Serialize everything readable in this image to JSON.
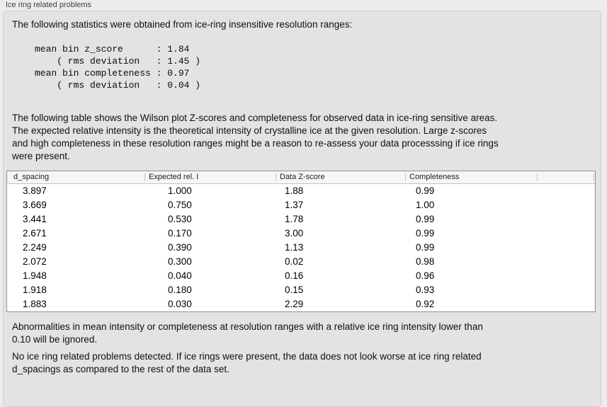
{
  "panel": {
    "label": "Ice ring related problems"
  },
  "sections": {
    "intro": "The following statistics were obtained from ice-ring insensitive resolution ranges:",
    "stats": "mean bin z_score      : 1.84\n    ( rms deviation   : 1.45 )\nmean bin completeness : 0.97\n    ( rms deviation   : 0.04 )",
    "table_caption": "The following table shows the Wilson plot Z-scores and completeness for observed data in ice-ring sensitive areas.\nThe expected relative intensity is the theoretical intensity of crystalline ice at the given resolution. Large z-scores\nand high completeness in these resolution ranges might be a reason to re-assess your data processsing if ice rings\nwere present.",
    "ignore_note": "Abnormalities in mean intensity or completeness at resolution ranges with a relative ice ring intensity lower than\n0.10 will be ignored.",
    "conclusion": "No ice ring related problems detected. If ice rings were present, the data does not look worse at ice ring related\nd_spacings as compared to the rest of the data set."
  },
  "stats_values": {
    "mean_bin_z_score": "1.84",
    "z_score_rms_deviation": "1.45",
    "mean_bin_completeness": "0.97",
    "completeness_rms_deviation": "0.04"
  },
  "table": {
    "columns": [
      "d_spacing",
      "Expected rel. I",
      "Data Z-score",
      "Completeness"
    ],
    "rows": [
      [
        "3.897",
        "1.000",
        "1.88",
        "0.99"
      ],
      [
        "3.669",
        "0.750",
        "1.37",
        "1.00"
      ],
      [
        "3.441",
        "0.530",
        "1.78",
        "0.99"
      ],
      [
        "2.671",
        "0.170",
        "3.00",
        "0.99"
      ],
      [
        "2.249",
        "0.390",
        "1.13",
        "0.99"
      ],
      [
        "2.072",
        "0.300",
        "0.02",
        "0.98"
      ],
      [
        "1.948",
        "0.040",
        "0.16",
        "0.96"
      ],
      [
        "1.918",
        "0.180",
        "0.15",
        "0.93"
      ],
      [
        "1.883",
        "0.030",
        "2.29",
        "0.92"
      ]
    ]
  },
  "colors": {
    "window_bg": "#ececec",
    "panel_bg": "#e3e3e3",
    "table_bg": "#ffffff",
    "table_border": "#909090",
    "header_bg": "#f6f6f6",
    "text": "#101010"
  }
}
